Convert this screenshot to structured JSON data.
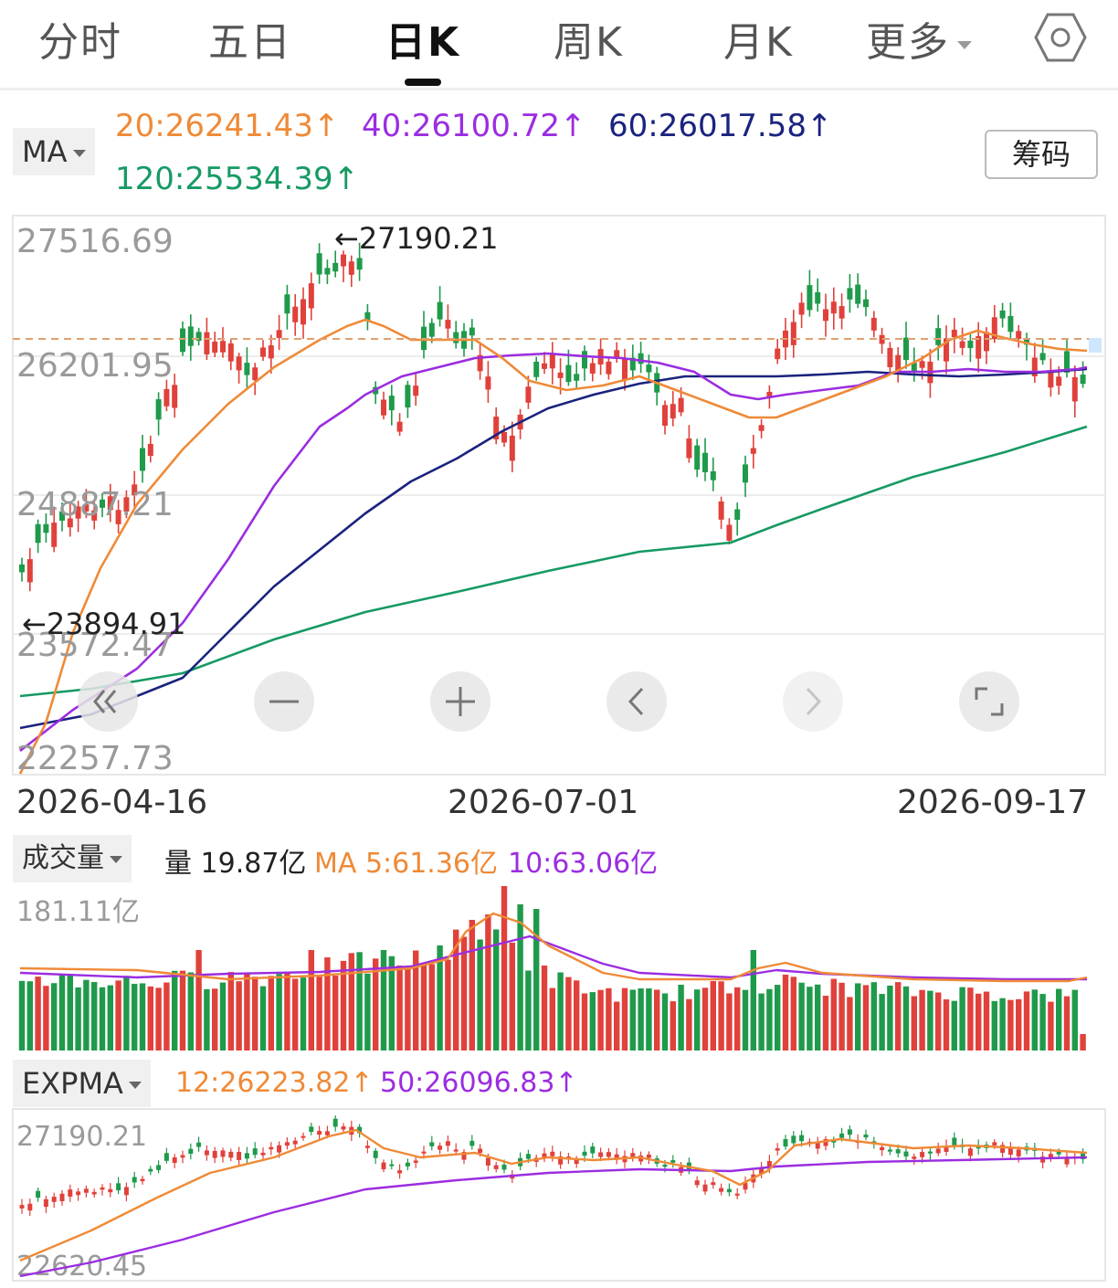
{
  "tabs": [
    {
      "label": "分时"
    },
    {
      "label": "五日"
    },
    {
      "label": "日K",
      "active": true
    },
    {
      "label": "周K"
    },
    {
      "label": "月K"
    },
    {
      "label": "更多"
    }
  ],
  "main": {
    "indicator": "MA",
    "ma20": "20:26241.43↑",
    "ma40": "40:26100.72↑",
    "ma60": "60:26017.58↑",
    "ma120": "120:25534.39↑",
    "chips_button": "筹码",
    "y_ticks": [
      "27516.69",
      "26201.95",
      "24887.21",
      "23572.47",
      "22257.73"
    ],
    "high_marker": "←27190.21",
    "low_marker": "←23894.91",
    "x_labels": [
      "2026-04-16",
      "2026-07-01",
      "2026-09-17"
    ]
  },
  "volume": {
    "indicator": "成交量",
    "vol": "量 19.87亿",
    "ma5": "MA 5:61.36亿",
    "ma10": "10:63.06亿",
    "y_max": "181.11亿"
  },
  "expma": {
    "indicator": "EXPMA",
    "e12": "12:26223.82↑",
    "e50": "50:26096.83↑",
    "y_top": "27190.21",
    "y_bottom": "22620.45"
  },
  "colors": {
    "up": "#e0413b",
    "down": "#1f9a4b",
    "ma20": "#ef8a37",
    "ma40": "#9b2de0",
    "ma60": "#1a237e",
    "ma120": "#169a63",
    "vol_ma5": "#ef8a37",
    "vol_ma10": "#9b2de0"
  },
  "chart_data": {
    "type": "candlestick",
    "period": "daily",
    "x_start": "2026-04-16",
    "x_end": "2026-09-17",
    "ylim": [
      22257.73,
      27516.69
    ],
    "high": 27190.21,
    "low": 23894.91,
    "latest_close": 26201.95,
    "moving_averages": {
      "MA20": 26241.43,
      "MA40": 26100.72,
      "MA60": 26017.58,
      "MA120": 25534.39
    },
    "volume": {
      "last": "19.87亿",
      "MA5": "61.36亿",
      "MA10": "63.06亿",
      "max": "181.11亿"
    },
    "expma": {
      "EXPMA12": 26223.82,
      "EXPMA50": 26096.83,
      "range": [
        22620.45,
        27190.21
      ]
    }
  }
}
